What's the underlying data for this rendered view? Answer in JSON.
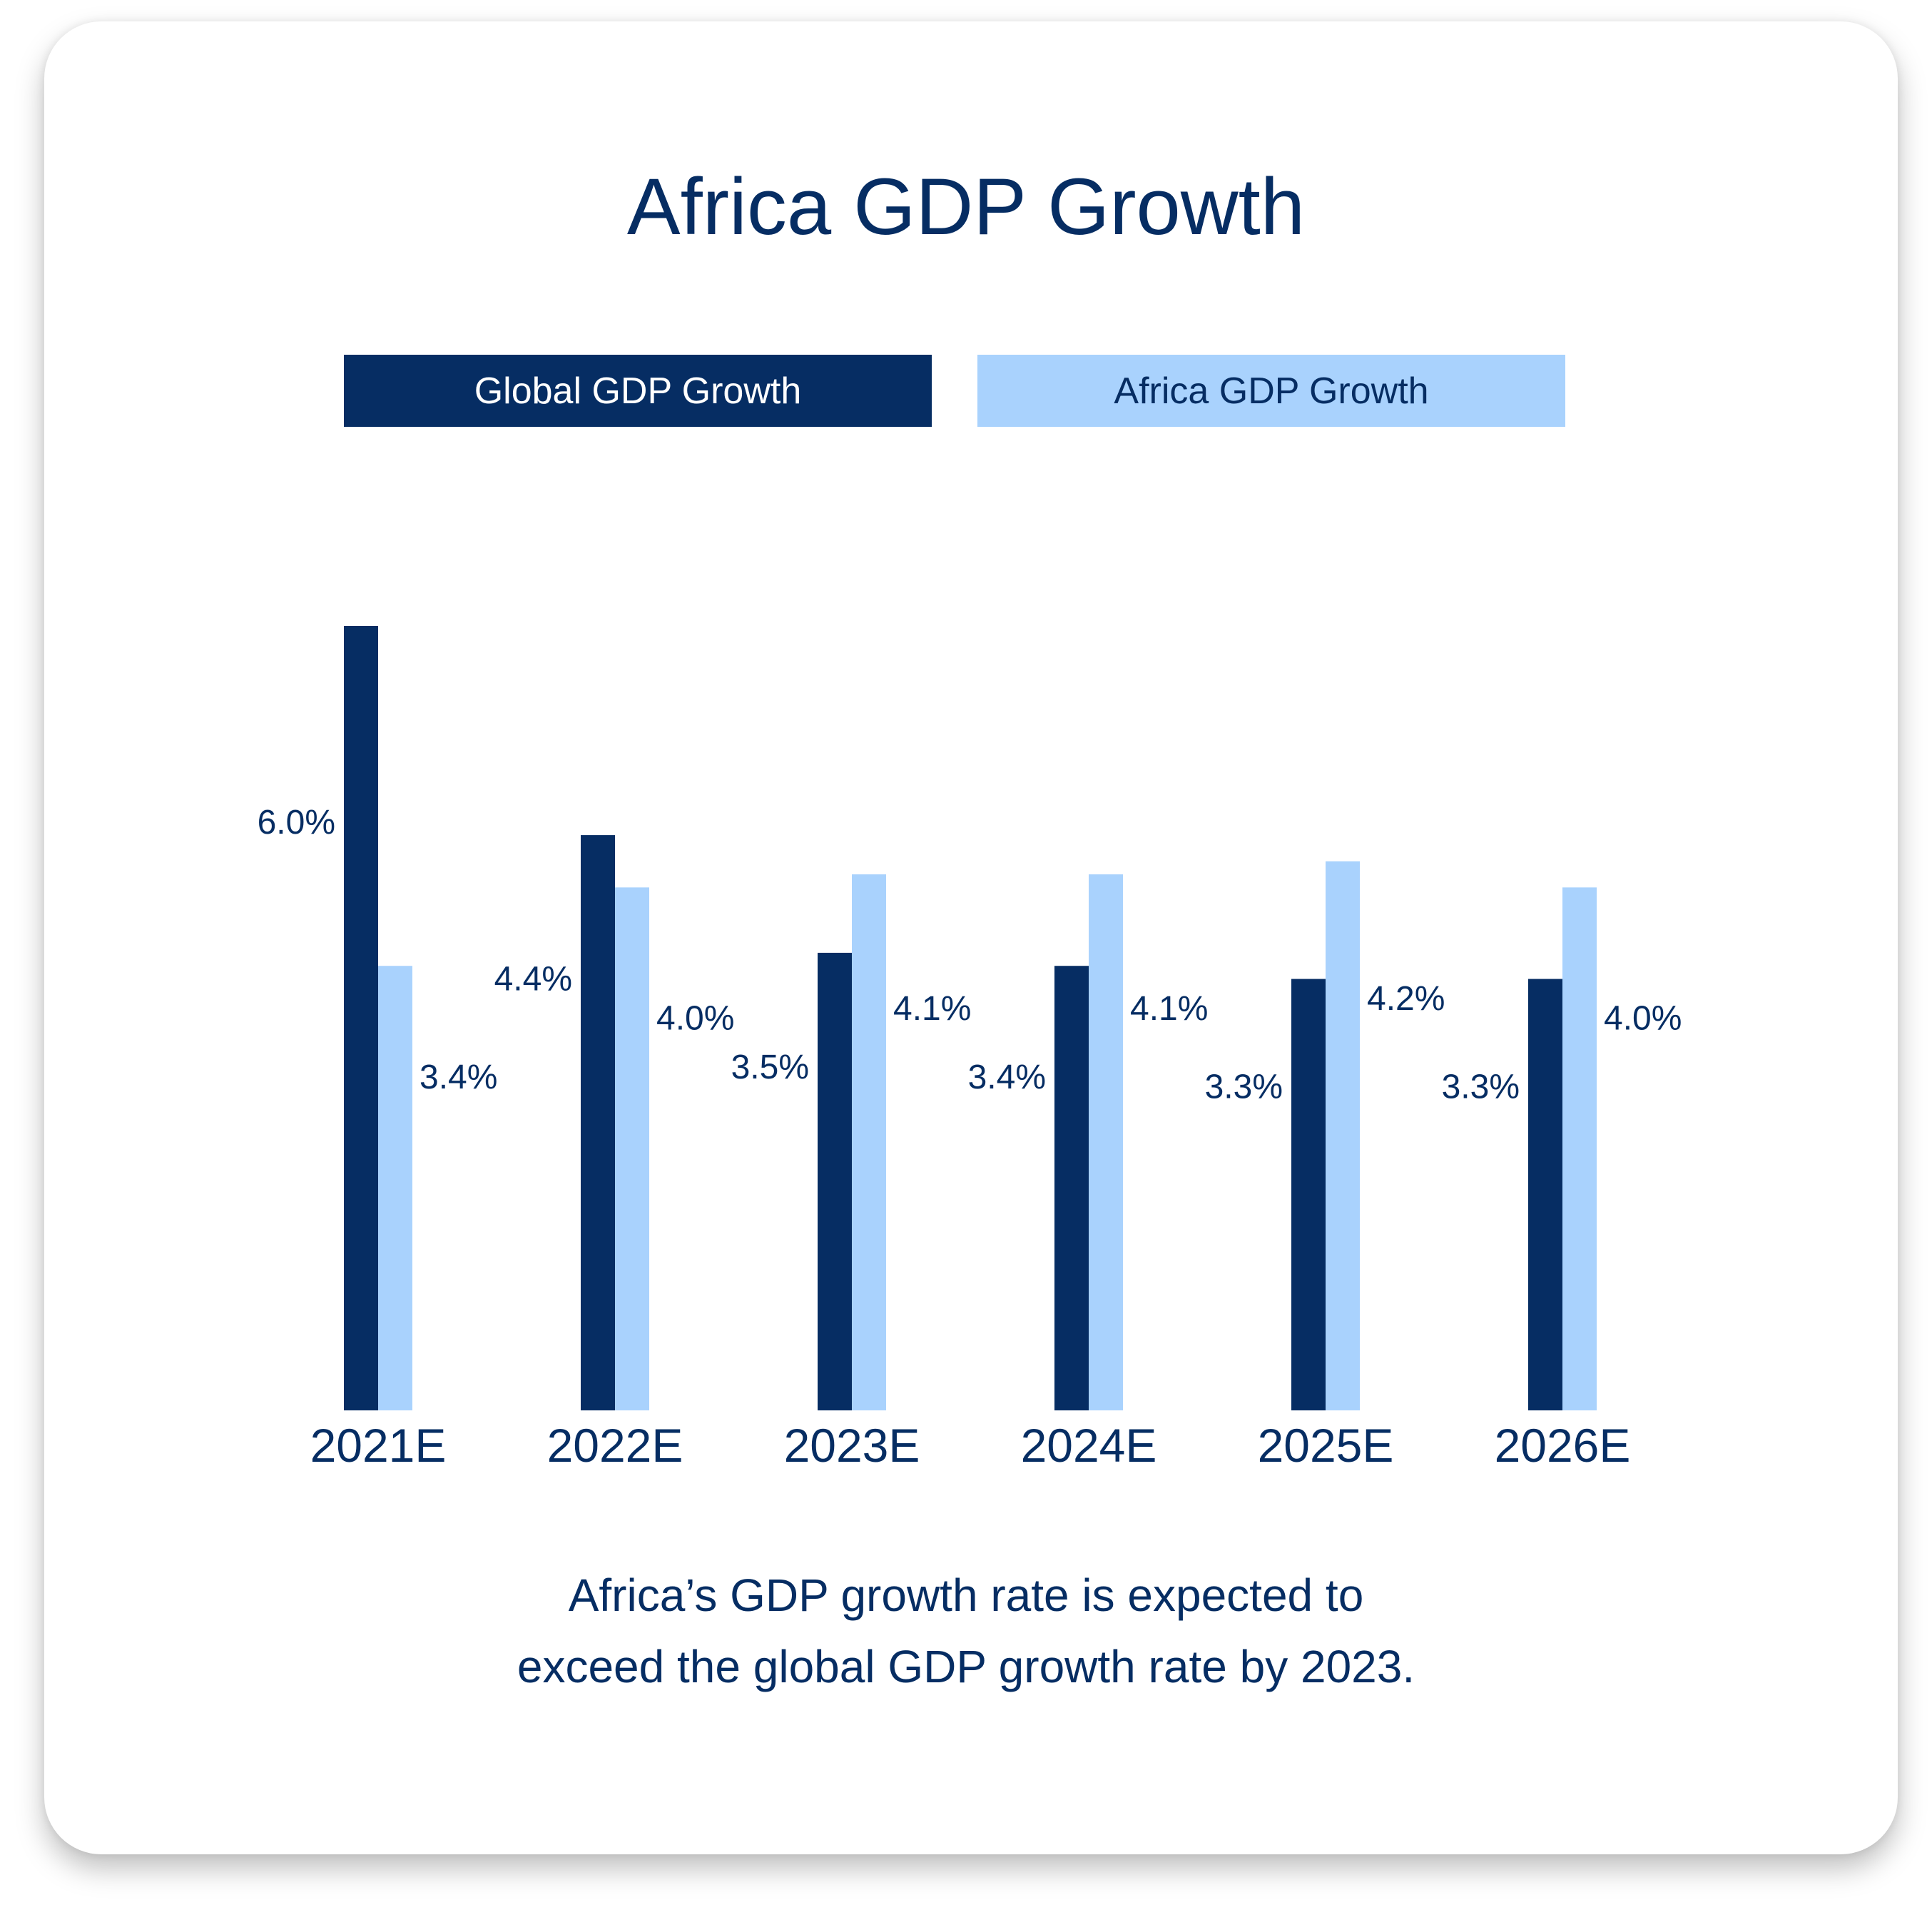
{
  "chart_data": {
    "type": "bar",
    "title": "Africa GDP Growth",
    "categories": [
      "2021E",
      "2022E",
      "2023E",
      "2024E",
      "2025E",
      "2026E"
    ],
    "series": [
      {
        "name": "Global GDP Growth",
        "color": "#062D63",
        "values": [
          6.0,
          4.4,
          3.5,
          3.4,
          3.3,
          3.3
        ],
        "labels": [
          "6.0%",
          "4.4%",
          "3.5%",
          "3.4%",
          "3.3%",
          "3.3%"
        ]
      },
      {
        "name": "Africa GDP Growth",
        "color": "#A9D2FD",
        "values": [
          3.4,
          4.0,
          4.1,
          4.1,
          4.2,
          4.0
        ],
        "labels": [
          "3.4%",
          "4.0%",
          "4.1%",
          "4.1%",
          "4.2%",
          "4.0%"
        ]
      }
    ],
    "xlabel": "",
    "ylabel": "",
    "ylim": [
      0,
      6.0
    ],
    "grid": false,
    "legend_position": "top",
    "caption_lines": [
      "Africa’s GDP growth rate is expected to",
      "exceed the global GDP growth rate by 2023."
    ]
  }
}
